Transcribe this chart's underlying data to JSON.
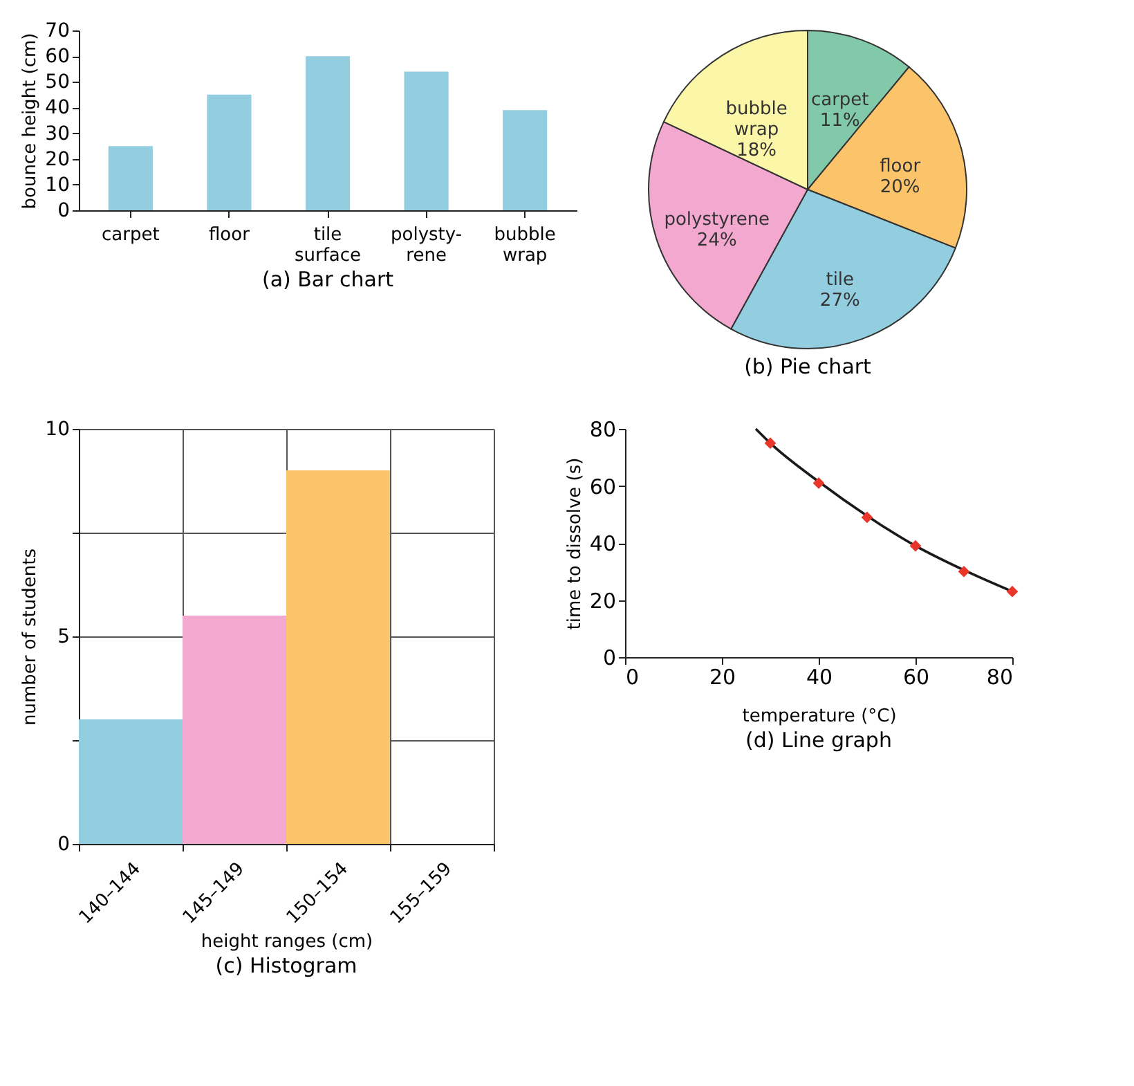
{
  "chart_data": [
    {
      "type": "bar",
      "title": "(a) Bar chart",
      "ylabel": "bounce height (cm)",
      "categories": [
        "carpet",
        "floor",
        "tile\nsurface",
        "polysty-\nrene",
        "bubble\nwrap"
      ],
      "values": [
        25,
        45,
        60,
        54,
        39
      ],
      "color": "#93cde0",
      "ylim": [
        0,
        70
      ],
      "yticks": [
        0,
        10,
        20,
        30,
        40,
        50,
        60,
        70
      ],
      "grid": false
    },
    {
      "type": "pie",
      "title": "(b) Pie chart",
      "categories": [
        "carpet",
        "floor",
        "tile",
        "polystyrene",
        "bubble\nwrap"
      ],
      "values": [
        11,
        20,
        27,
        24,
        18
      ],
      "value_labels": [
        "11%",
        "20%",
        "27%",
        "24%",
        "18%"
      ],
      "colors": [
        "#82c9aa",
        "#fbc46a",
        "#93cde0",
        "#f3a8d0",
        "#fbf6a8"
      ]
    },
    {
      "type": "bar",
      "title": "(c) Histogram",
      "xlabel": "height ranges (cm)",
      "ylabel": "number of students",
      "categories": [
        "140–144",
        "145–149",
        "150–154",
        "155–159"
      ],
      "values": [
        3,
        5.5,
        9,
        0
      ],
      "colors": [
        "#93cde0",
        "#f3a8d0",
        "#fbc46a",
        "#fbc46a"
      ],
      "ylim": [
        0,
        10
      ],
      "yticks": [
        0,
        {
          "value": 2.5,
          "label": null
        },
        5,
        {
          "value": 7.5,
          "label": null
        },
        10
      ],
      "grid": true
    },
    {
      "type": "scatter",
      "title": "(d) Line graph",
      "xlabel": "temperature (°C)",
      "ylabel": "time to dissolve (s)",
      "xlim": [
        0,
        80
      ],
      "xticks": [
        0,
        20,
        40,
        60,
        80
      ],
      "ylim": [
        0,
        80
      ],
      "yticks": [
        0,
        20,
        40,
        60,
        80
      ],
      "grid": false,
      "series": [
        {
          "type": "line",
          "color": "#1a1a1a",
          "line_style": "solid",
          "x": [
            27,
            30,
            40,
            50,
            60,
            70,
            80
          ],
          "values": [
            80,
            75,
            61.5,
            49.5,
            39,
            30.5,
            23
          ]
        },
        {
          "type": "scatter",
          "color": "#e8362a",
          "marker": "diamond",
          "x": [
            30,
            40,
            50,
            60,
            70,
            80
          ],
          "values": [
            75,
            61,
            49,
            39,
            30,
            23
          ]
        }
      ]
    }
  ]
}
